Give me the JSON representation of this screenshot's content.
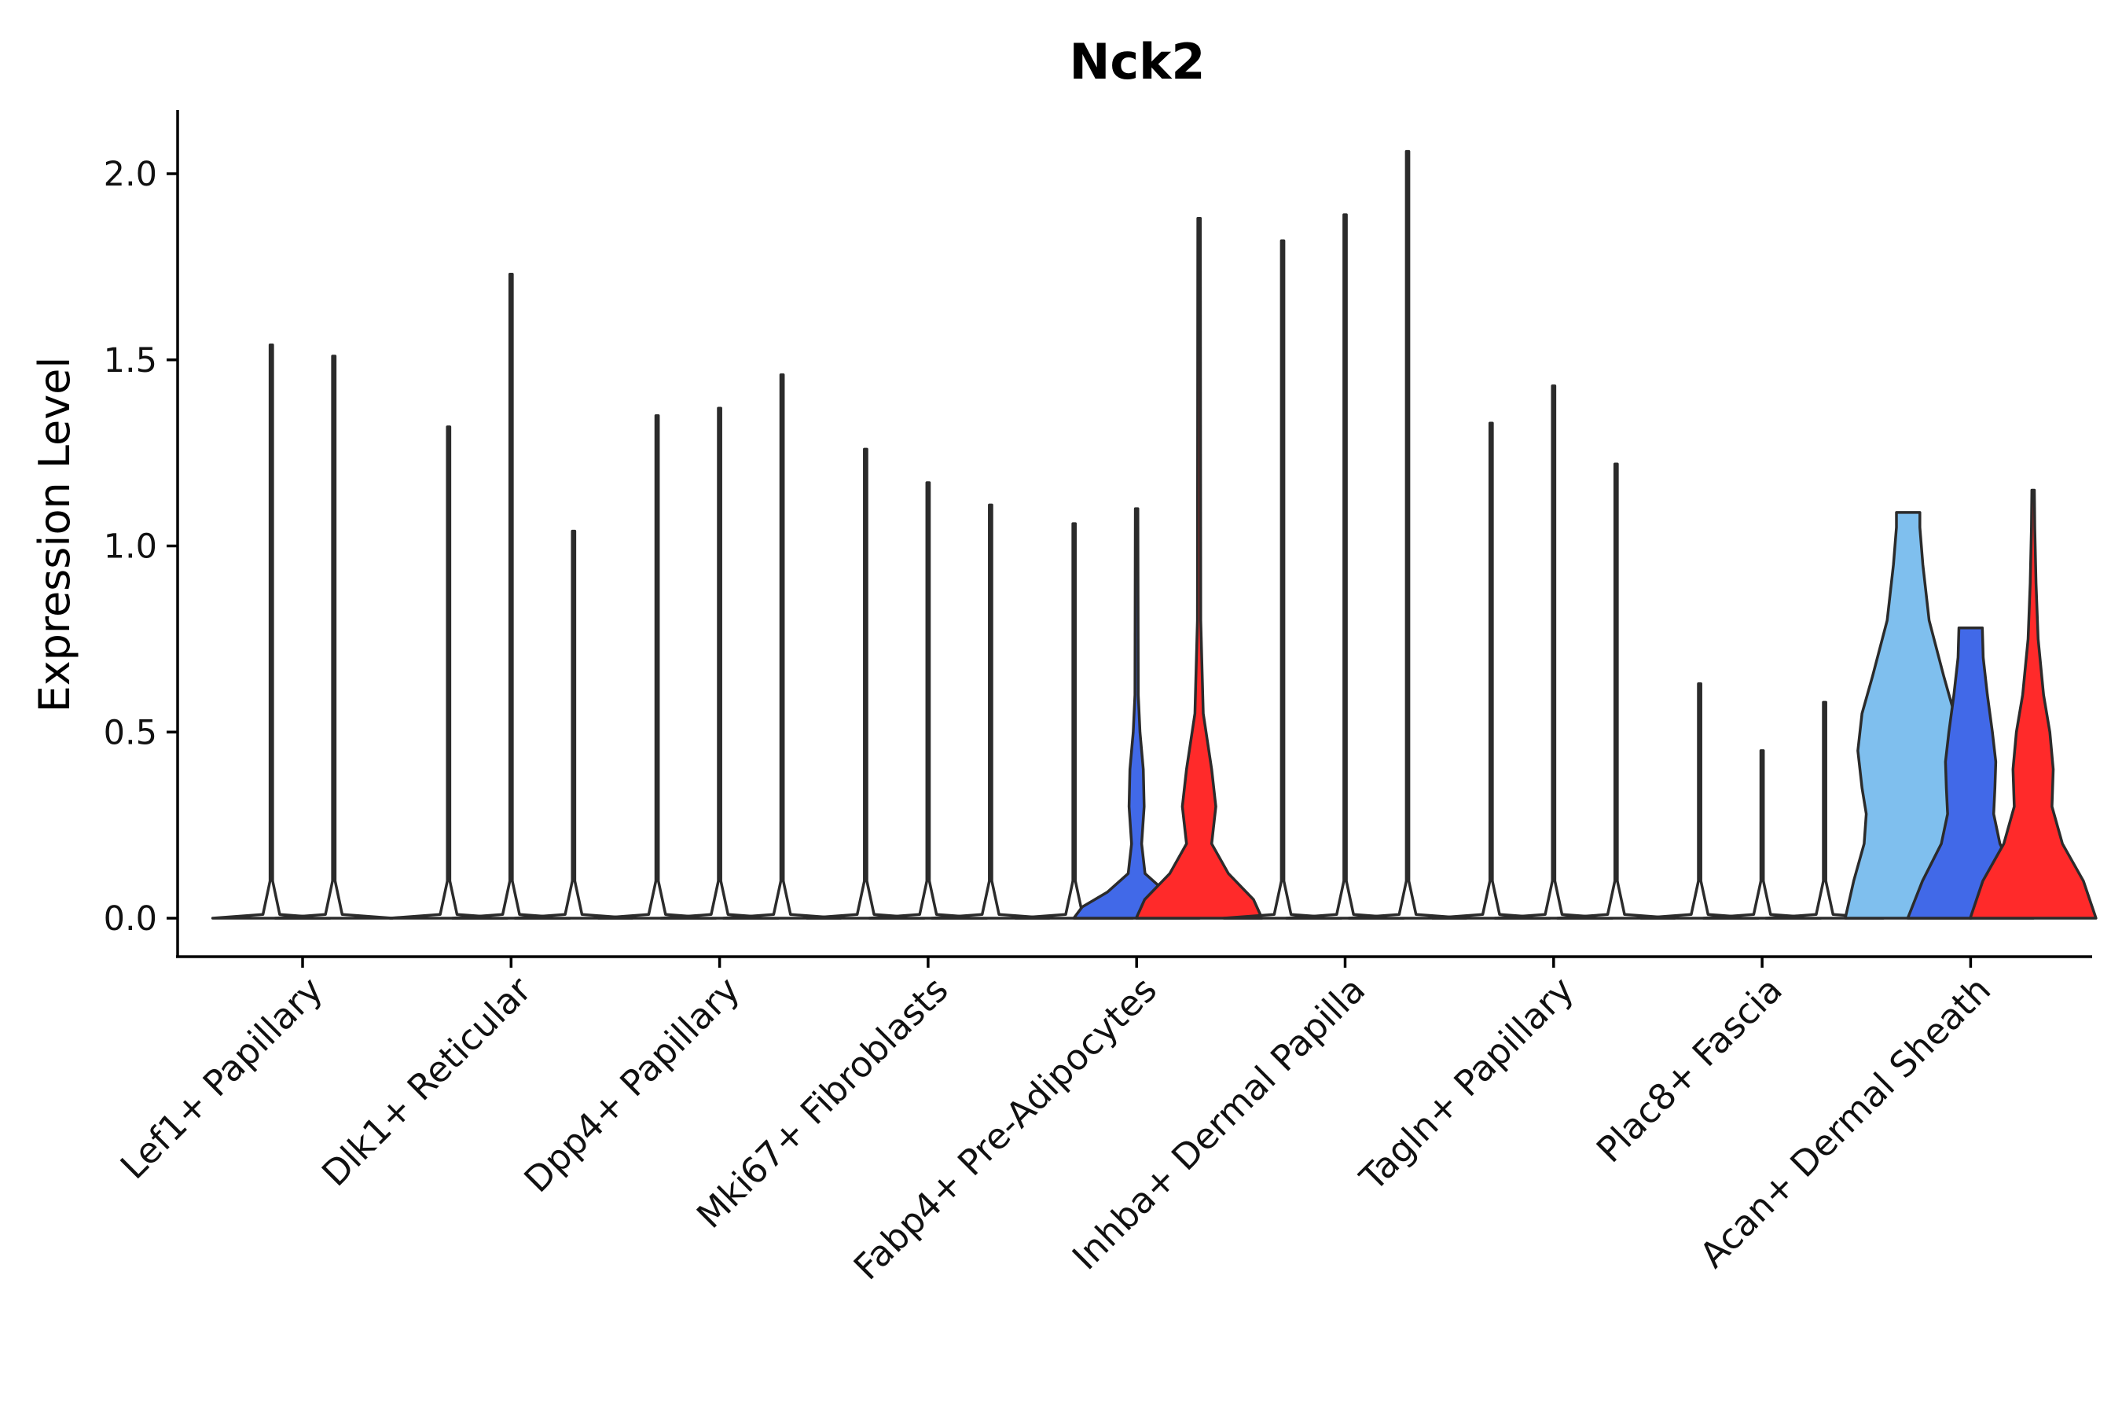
{
  "chart_data": {
    "type": "violin",
    "title": "Nck2",
    "xlabel": "",
    "ylabel": "Expression Level",
    "ylim": [
      -0.1,
      2.17
    ],
    "yticks": [
      "0.0",
      "0.5",
      "1.0",
      "1.5",
      "2.0"
    ],
    "grid": false,
    "legend": "none",
    "groups": [
      {
        "category": "Lef1+ Papillary",
        "violins": [
          {
            "color": "#ffffff",
            "max": 1.54,
            "profile": [
              [
                0,
                0.14
              ],
              [
                0.01,
                0.02
              ],
              [
                0.1,
                0.003
              ],
              [
                1.54,
                0.003
              ]
            ]
          },
          {
            "color": "#ffffff",
            "max": 1.51,
            "profile": [
              [
                0,
                0.14
              ],
              [
                0.01,
                0.02
              ],
              [
                0.1,
                0.003
              ],
              [
                1.51,
                0.003
              ]
            ]
          }
        ]
      },
      {
        "category": "Dlk1+ Reticular",
        "violins": [
          {
            "color": "#ffffff",
            "max": 1.32,
            "profile": [
              [
                0,
                0.14
              ],
              [
                0.01,
                0.02
              ],
              [
                0.1,
                0.003
              ],
              [
                1.32,
                0.003
              ]
            ]
          },
          {
            "color": "#ffffff",
            "max": 1.73,
            "profile": [
              [
                0,
                0.14
              ],
              [
                0.01,
                0.02
              ],
              [
                0.1,
                0.003
              ],
              [
                1.73,
                0.003
              ]
            ]
          },
          {
            "color": "#ffffff",
            "max": 1.04,
            "profile": [
              [
                0,
                0.14
              ],
              [
                0.01,
                0.02
              ],
              [
                0.1,
                0.003
              ],
              [
                1.04,
                0.003
              ]
            ]
          }
        ]
      },
      {
        "category": "Dpp4+ Papillary",
        "violins": [
          {
            "color": "#ffffff",
            "max": 1.35,
            "profile": [
              [
                0,
                0.14
              ],
              [
                0.01,
                0.02
              ],
              [
                0.1,
                0.003
              ],
              [
                1.35,
                0.003
              ]
            ]
          },
          {
            "color": "#ffffff",
            "max": 1.37,
            "profile": [
              [
                0,
                0.14
              ],
              [
                0.01,
                0.02
              ],
              [
                0.1,
                0.003
              ],
              [
                1.37,
                0.003
              ]
            ]
          },
          {
            "color": "#ffffff",
            "max": 1.46,
            "profile": [
              [
                0,
                0.14
              ],
              [
                0.01,
                0.02
              ],
              [
                0.1,
                0.003
              ],
              [
                1.46,
                0.003
              ]
            ]
          }
        ]
      },
      {
        "category": "Mki67+ Fibroblasts",
        "violins": [
          {
            "color": "#ffffff",
            "max": 1.26,
            "profile": [
              [
                0,
                0.14
              ],
              [
                0.01,
                0.02
              ],
              [
                0.1,
                0.003
              ],
              [
                1.26,
                0.003
              ]
            ]
          },
          {
            "color": "#ffffff",
            "max": 1.17,
            "profile": [
              [
                0,
                0.14
              ],
              [
                0.01,
                0.02
              ],
              [
                0.1,
                0.003
              ],
              [
                1.17,
                0.003
              ]
            ]
          },
          {
            "color": "#ffffff",
            "max": 1.11,
            "profile": [
              [
                0,
                0.14
              ],
              [
                0.01,
                0.02
              ],
              [
                0.1,
                0.003
              ],
              [
                1.11,
                0.003
              ]
            ]
          }
        ]
      },
      {
        "category": "Fabp4+ Pre-Adipocytes",
        "violins": [
          {
            "color": "#ffffff",
            "max": 1.06,
            "profile": [
              [
                0,
                0.14
              ],
              [
                0.01,
                0.02
              ],
              [
                0.1,
                0.003
              ],
              [
                1.06,
                0.003
              ]
            ]
          },
          {
            "color": "#4169e8",
            "max": 1.1,
            "profile": [
              [
                0,
                0.15
              ],
              [
                0.03,
                0.13
              ],
              [
                0.07,
                0.07
              ],
              [
                0.12,
                0.02
              ],
              [
                0.2,
                0.012
              ],
              [
                0.3,
                0.018
              ],
              [
                0.4,
                0.016
              ],
              [
                0.5,
                0.008
              ],
              [
                0.6,
                0.004
              ],
              [
                1.1,
                0.003
              ]
            ]
          },
          {
            "color": "#ff2a2a",
            "max": 1.88,
            "profile": [
              [
                0,
                0.15
              ],
              [
                0.05,
                0.13
              ],
              [
                0.12,
                0.07
              ],
              [
                0.2,
                0.03
              ],
              [
                0.3,
                0.04
              ],
              [
                0.4,
                0.03
              ],
              [
                0.55,
                0.01
              ],
              [
                0.8,
                0.004
              ],
              [
                1.88,
                0.003
              ]
            ]
          }
        ]
      },
      {
        "category": "Inhba+ Dermal Papilla",
        "violins": [
          {
            "color": "#ffffff",
            "max": 1.82,
            "profile": [
              [
                0,
                0.14
              ],
              [
                0.01,
                0.02
              ],
              [
                0.1,
                0.003
              ],
              [
                1.82,
                0.003
              ]
            ]
          },
          {
            "color": "#ffffff",
            "max": 1.89,
            "profile": [
              [
                0,
                0.14
              ],
              [
                0.01,
                0.02
              ],
              [
                0.1,
                0.003
              ],
              [
                1.89,
                0.003
              ]
            ]
          },
          {
            "color": "#ffffff",
            "max": 2.06,
            "profile": [
              [
                0,
                0.14
              ],
              [
                0.01,
                0.02
              ],
              [
                0.1,
                0.003
              ],
              [
                2.06,
                0.003
              ]
            ]
          }
        ]
      },
      {
        "category": "Tagln+ Papillary",
        "violins": [
          {
            "color": "#ffffff",
            "max": 1.33,
            "profile": [
              [
                0,
                0.14
              ],
              [
                0.01,
                0.02
              ],
              [
                0.1,
                0.003
              ],
              [
                1.33,
                0.003
              ]
            ]
          },
          {
            "color": "#ffffff",
            "max": 1.43,
            "profile": [
              [
                0,
                0.14
              ],
              [
                0.01,
                0.02
              ],
              [
                0.1,
                0.003
              ],
              [
                1.43,
                0.003
              ]
            ]
          },
          {
            "color": "#ffffff",
            "max": 1.22,
            "profile": [
              [
                0,
                0.14
              ],
              [
                0.01,
                0.02
              ],
              [
                0.1,
                0.003
              ],
              [
                1.22,
                0.003
              ]
            ]
          }
        ]
      },
      {
        "category": "Plac8+ Fascia",
        "violins": [
          {
            "color": "#ffffff",
            "max": 0.63,
            "profile": [
              [
                0,
                0.14
              ],
              [
                0.01,
                0.02
              ],
              [
                0.1,
                0.003
              ],
              [
                0.63,
                0.003
              ]
            ]
          },
          {
            "color": "#ffffff",
            "max": 0.45,
            "profile": [
              [
                0,
                0.14
              ],
              [
                0.01,
                0.02
              ],
              [
                0.1,
                0.003
              ],
              [
                0.45,
                0.003
              ]
            ]
          },
          {
            "color": "#ffffff",
            "max": 0.58,
            "profile": [
              [
                0,
                0.14
              ],
              [
                0.01,
                0.02
              ],
              [
                0.1,
                0.003
              ],
              [
                0.58,
                0.003
              ]
            ]
          }
        ]
      },
      {
        "category": "Acan+ Dermal Sheath",
        "violins": [
          {
            "color": "#7fbfee",
            "max": 1.09,
            "profile": [
              [
                0,
                0.15
              ],
              [
                0.1,
                0.13
              ],
              [
                0.2,
                0.105
              ],
              [
                0.28,
                0.1
              ],
              [
                0.35,
                0.11
              ],
              [
                0.45,
                0.12
              ],
              [
                0.55,
                0.11
              ],
              [
                0.65,
                0.085
              ],
              [
                0.8,
                0.05
              ],
              [
                0.95,
                0.035
              ],
              [
                1.05,
                0.028
              ],
              [
                1.09,
                0.028
              ]
            ]
          },
          {
            "color": "#4169e8",
            "max": 0.78,
            "profile": [
              [
                0,
                0.15
              ],
              [
                0.1,
                0.115
              ],
              [
                0.2,
                0.07
              ],
              [
                0.28,
                0.055
              ],
              [
                0.35,
                0.058
              ],
              [
                0.42,
                0.06
              ],
              [
                0.5,
                0.052
              ],
              [
                0.6,
                0.04
              ],
              [
                0.7,
                0.03
              ],
              [
                0.78,
                0.028
              ]
            ]
          },
          {
            "color": "#ff2a2a",
            "max": 1.15,
            "profile": [
              [
                0,
                0.15
              ],
              [
                0.1,
                0.12
              ],
              [
                0.2,
                0.07
              ],
              [
                0.3,
                0.045
              ],
              [
                0.4,
                0.048
              ],
              [
                0.5,
                0.04
              ],
              [
                0.6,
                0.025
              ],
              [
                0.75,
                0.012
              ],
              [
                0.9,
                0.007
              ],
              [
                1.05,
                0.004
              ],
              [
                1.15,
                0.003
              ]
            ]
          }
        ]
      }
    ]
  }
}
